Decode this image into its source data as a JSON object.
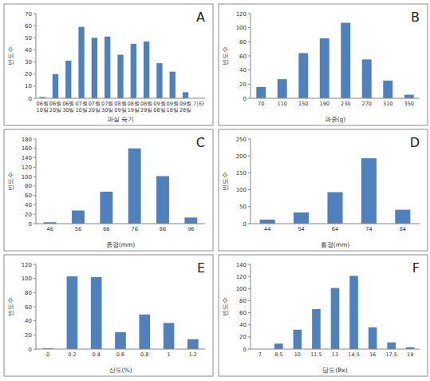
{
  "chart_data": [
    {
      "type": "bar",
      "title": "A",
      "x_label": "과실 숙기",
      "y_label": "빈도수",
      "categories": [
        "06월 10일",
        "06월 20일",
        "06월 30일",
        "07월 10일",
        "07월 20일",
        "07월 30일",
        "08월 09일",
        "08월 19일",
        "08월 29일",
        "09월 08일",
        "09월 18일",
        "09월 28일",
        "기타"
      ],
      "values": [
        1,
        20,
        31,
        59,
        50,
        51,
        36,
        45,
        47,
        29,
        22,
        5,
        0
      ],
      "color": "#4f81bd",
      "ylim": [
        0,
        70
      ],
      "yticks": [
        0,
        10,
        20,
        30,
        40,
        50,
        60,
        70
      ],
      "grid": false
    },
    {
      "type": "bar",
      "title": "B",
      "x_label": "과중(g)",
      "y_label": "빈도수",
      "categories": [
        "70",
        "110",
        "150",
        "190",
        "230",
        "270",
        "310",
        "350"
      ],
      "values": [
        16,
        27,
        64,
        85,
        107,
        55,
        25,
        5
      ],
      "color": "#4f81bd",
      "ylim": [
        0,
        120
      ],
      "yticks": [
        0,
        20,
        40,
        60,
        80,
        100,
        120
      ],
      "grid": false
    },
    {
      "type": "bar",
      "title": "C",
      "x_label": "종경(mm)",
      "y_label": "빈도수",
      "categories": [
        "46",
        "56",
        "66",
        "76",
        "86",
        "96"
      ],
      "values": [
        3,
        28,
        68,
        160,
        101,
        13
      ],
      "color": "#4f81bd",
      "ylim": [
        0,
        180
      ],
      "yticks": [
        0,
        20,
        40,
        60,
        80,
        100,
        120,
        140,
        160,
        180
      ],
      "grid": false
    },
    {
      "type": "bar",
      "title": "D",
      "x_label": "횡경(mm)",
      "y_label": "빈도수",
      "categories": [
        "44",
        "54",
        "64",
        "74",
        "84"
      ],
      "values": [
        12,
        33,
        93,
        193,
        41
      ],
      "color": "#4f81bd",
      "ylim": [
        0,
        250
      ],
      "yticks": [
        0,
        50,
        100,
        150,
        200,
        250
      ],
      "grid": false
    },
    {
      "type": "bar",
      "title": "E",
      "x_label": "산도(%)",
      "y_label": "빈도수",
      "categories": [
        "0",
        "0.2",
        "0.4",
        "0.6",
        "0.8",
        "1",
        "1.2"
      ],
      "values": [
        1,
        103,
        102,
        24,
        49,
        37,
        14
      ],
      "color": "#4f81bd",
      "ylim": [
        0,
        120
      ],
      "yticks": [
        0,
        20,
        40,
        60,
        80,
        100,
        120
      ],
      "grid": false
    },
    {
      "type": "bar",
      "title": "F",
      "x_label": "당도(Bx)",
      "y_label": "빈도수",
      "categories": [
        "7",
        "8.5",
        "10",
        "11.5",
        "13",
        "14.5",
        "16",
        "17.5",
        "19"
      ],
      "values": [
        0,
        9,
        32,
        66,
        101,
        121,
        36,
        11,
        3
      ],
      "color": "#4f81bd",
      "ylim": [
        0,
        140
      ],
      "yticks": [
        0,
        20,
        40,
        60,
        80,
        100,
        120,
        140
      ],
      "grid": false
    }
  ]
}
